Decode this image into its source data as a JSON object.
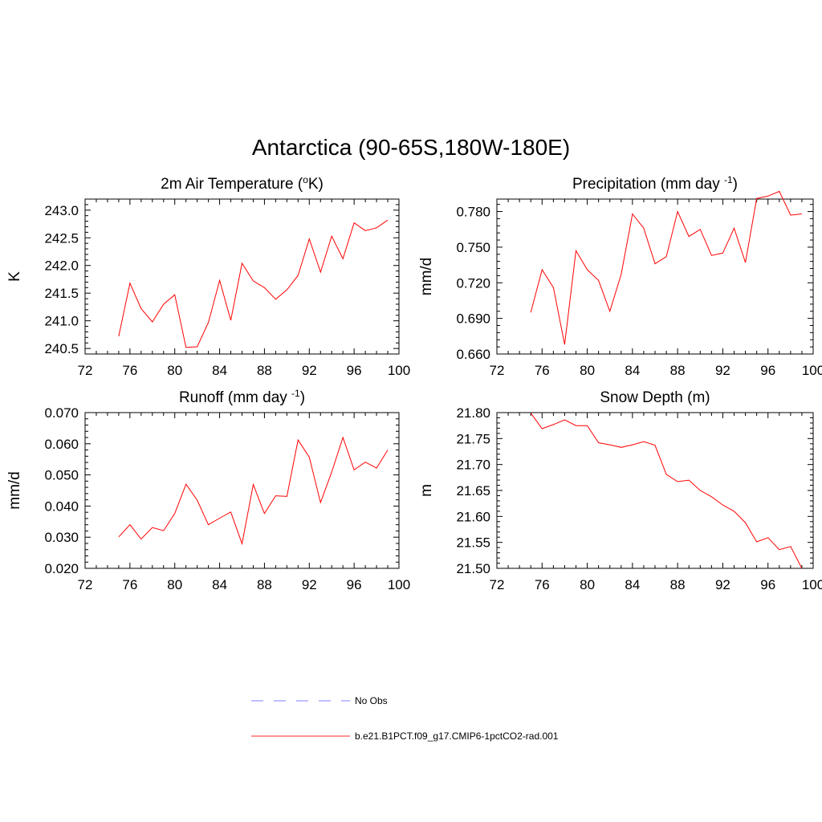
{
  "figure": {
    "title": "Antarctica (90-65S,180W-180E)"
  },
  "legend": {
    "items": [
      {
        "label": "No Obs",
        "color": "#9999ff",
        "style": "dashed"
      },
      {
        "label": "b.e21.B1PCT.f09_g17.CMIP6-1pctCO2-rad.001",
        "color": "#ff5555",
        "style": "solid"
      }
    ]
  },
  "chart_data": [
    {
      "type": "line",
      "title": "2m Air Temperature",
      "title_unit": "K",
      "ylabel": "K",
      "xlim": [
        72,
        100
      ],
      "ylim": [
        240.4,
        243.2
      ],
      "xticks": [
        72,
        76,
        80,
        84,
        88,
        92,
        96,
        100
      ],
      "yticks": [
        240.5,
        241.0,
        241.5,
        242.0,
        242.5,
        243.0
      ],
      "ytick_labels": [
        "240.5",
        "241.0",
        "241.5",
        "242.0",
        "242.5",
        "243.0"
      ],
      "series": [
        {
          "color": "#ff0000",
          "x": [
            75,
            76,
            77,
            78,
            79,
            80,
            81,
            82,
            83,
            84,
            85,
            86,
            87,
            88,
            89,
            90,
            91,
            92,
            93,
            94,
            95,
            96,
            97,
            98,
            99
          ],
          "y": [
            240.72,
            241.68,
            241.22,
            240.98,
            241.3,
            241.47,
            240.52,
            240.53,
            240.97,
            241.73,
            241.01,
            242.04,
            241.72,
            241.6,
            241.39,
            241.56,
            241.82,
            242.48,
            241.88,
            242.53,
            242.12,
            242.77,
            242.63,
            242.68,
            242.82
          ]
        }
      ]
    },
    {
      "type": "line",
      "title": "Precipitation (mm day",
      "title_sup": "-1",
      "title_end": ")",
      "ylabel": "mm/d",
      "xlim": [
        72,
        100
      ],
      "ylim": [
        0.66,
        0.7905
      ],
      "xticks": [
        72,
        76,
        80,
        84,
        88,
        92,
        96,
        100
      ],
      "yticks": [
        0.66,
        0.69,
        0.72,
        0.75,
        0.78
      ],
      "ytick_labels": [
        "0.660",
        "0.690",
        "0.720",
        "0.750",
        "0.780"
      ],
      "series": [
        {
          "color": "#ff0000",
          "x": [
            75,
            76,
            77,
            78,
            79,
            80,
            81,
            82,
            83,
            84,
            85,
            86,
            87,
            88,
            89,
            90,
            91,
            92,
            93,
            94,
            95,
            96,
            97,
            98,
            99
          ],
          "y": [
            0.695,
            0.731,
            0.716,
            0.668,
            0.747,
            0.731,
            0.722,
            0.696,
            0.727,
            0.778,
            0.766,
            0.736,
            0.742,
            0.78,
            0.759,
            0.765,
            0.743,
            0.745,
            0.766,
            0.737,
            0.791,
            0.793,
            0.797,
            0.777,
            0.778
          ]
        }
      ]
    },
    {
      "type": "line",
      "title": "Runoff (mm day",
      "title_sup": "-1",
      "title_end": ")",
      "ylabel": "mm/d",
      "xlim": [
        72,
        100
      ],
      "ylim": [
        0.02,
        0.07
      ],
      "xticks": [
        72,
        76,
        80,
        84,
        88,
        92,
        96,
        100
      ],
      "yticks": [
        0.02,
        0.03,
        0.04,
        0.05,
        0.06,
        0.07
      ],
      "ytick_labels": [
        "0.020",
        "0.030",
        "0.040",
        "0.050",
        "0.060",
        "0.070"
      ],
      "series": [
        {
          "color": "#ff0000",
          "x": [
            75,
            76,
            77,
            78,
            79,
            80,
            81,
            82,
            83,
            84,
            85,
            86,
            87,
            88,
            89,
            90,
            91,
            92,
            93,
            94,
            95,
            96,
            97,
            98,
            99
          ],
          "y": [
            0.0301,
            0.034,
            0.0294,
            0.0331,
            0.0321,
            0.0376,
            0.047,
            0.0419,
            0.034,
            0.0361,
            0.0381,
            0.0279,
            0.0469,
            0.0376,
            0.0433,
            0.0431,
            0.0612,
            0.0557,
            0.0411,
            0.0509,
            0.062,
            0.0516,
            0.0541,
            0.0522,
            0.058
          ]
        }
      ]
    },
    {
      "type": "line",
      "title": "Snow Depth (m)",
      "ylabel": "m",
      "xlim": [
        72,
        100
      ],
      "ylim": [
        21.5,
        21.8
      ],
      "xticks": [
        72,
        76,
        80,
        84,
        88,
        92,
        96,
        100
      ],
      "yticks": [
        21.5,
        21.55,
        21.6,
        21.65,
        21.7,
        21.75,
        21.8
      ],
      "ytick_labels": [
        "21.50",
        "21.55",
        "21.60",
        "21.65",
        "21.70",
        "21.75",
        "21.80"
      ],
      "series": [
        {
          "color": "#ff0000",
          "x": [
            75,
            76,
            77,
            78,
            79,
            80,
            81,
            82,
            83,
            84,
            85,
            86,
            87,
            88,
            89,
            90,
            91,
            92,
            93,
            94,
            95,
            96,
            97,
            98,
            99
          ],
          "y": [
            21.799,
            21.769,
            21.777,
            21.786,
            21.775,
            21.775,
            21.742,
            21.738,
            21.733,
            21.738,
            21.744,
            21.737,
            21.681,
            21.667,
            21.67,
            21.65,
            21.638,
            21.622,
            21.61,
            21.588,
            21.551,
            21.559,
            21.536,
            21.542,
            21.5
          ]
        }
      ]
    }
  ]
}
